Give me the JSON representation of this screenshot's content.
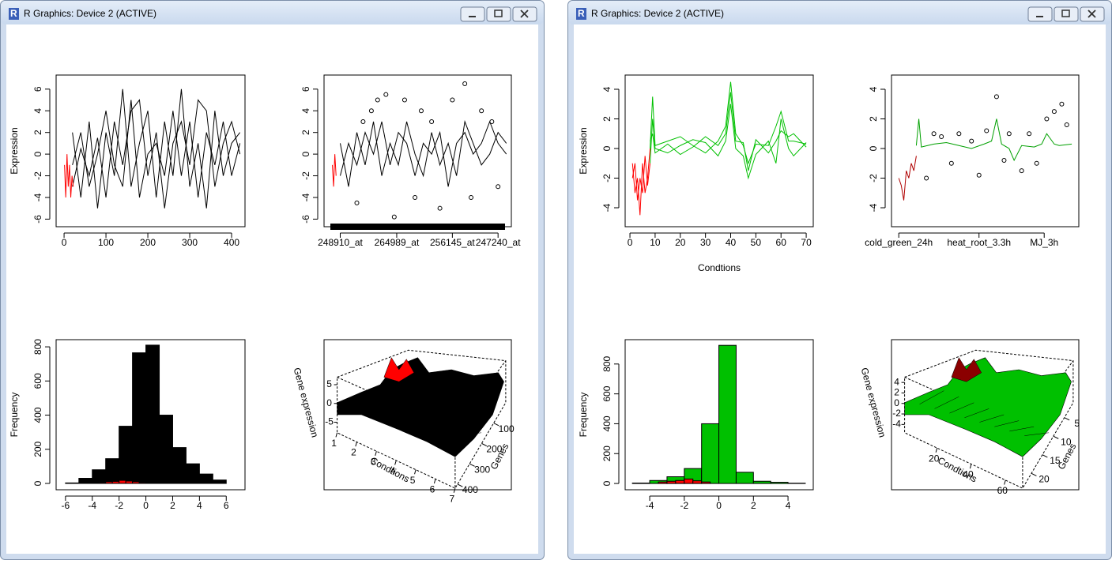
{
  "windows": [
    {
      "title": "R Graphics: Device 2 (ACTIVE)",
      "plots": [
        {
          "type": "line",
          "ylabel": "Expression",
          "xlim": [
            -19,
            432
          ],
          "ylim": [
            -6.7,
            7.3
          ],
          "xticks": [
            0,
            100,
            200,
            300,
            400
          ],
          "yticks": [
            -6,
            -4,
            -2,
            0,
            2,
            4,
            6
          ],
          "series": [
            {
              "color": "#000000",
              "x": [
                20,
                40,
                60,
                80,
                100,
                120,
                140,
                160,
                180,
                200,
                220,
                240,
                260,
                280,
                300,
                320,
                340,
                360,
                380,
                400,
                420
              ],
              "values": [
                -3,
                0.5,
                -2,
                1.5,
                -4,
                3,
                -1,
                4,
                5,
                -2,
                2,
                -5,
                1,
                3,
                -1,
                5,
                4,
                -3,
                1,
                3,
                0
              ]
            },
            {
              "color": "#000000",
              "x": [
                20,
                40,
                60,
                80,
                100,
                120,
                140,
                160,
                180,
                200,
                220,
                240,
                260,
                280,
                300,
                320,
                340,
                360,
                380,
                400,
                420
              ],
              "values": [
                2,
                -4,
                3,
                -5,
                2,
                -2,
                6,
                -3,
                1,
                4,
                -4,
                3,
                -2,
                6,
                -3,
                1,
                -5,
                4,
                -2,
                1,
                2
              ]
            },
            {
              "color": "#000000",
              "x": [
                20,
                40,
                60,
                80,
                100,
                120,
                140,
                160,
                180,
                200,
                220,
                240,
                260,
                280,
                300,
                320,
                340,
                360,
                380,
                400,
                420
              ],
              "values": [
                -1,
                2,
                -3,
                0,
                4,
                -1,
                -3,
                5,
                -4,
                0,
                1,
                -2,
                4,
                -2,
                3,
                -4,
                2,
                -1,
                3,
                -2,
                1
              ]
            },
            {
              "color": "#ff0000",
              "x": [
                1,
                4,
                7,
                10,
                13,
                16,
                19,
                22
              ],
              "values": [
                -1,
                -4,
                0,
                -3,
                -1,
                -4,
                -2,
                -3
              ]
            }
          ]
        },
        {
          "type": "line",
          "xlim": [
            -19,
            432
          ],
          "ylim": [
            -6.7,
            7.3
          ],
          "xticks": [
            {
              "value": 20,
              "label": "248910_at"
            },
            {
              "value": 156,
              "label": "264989_at"
            },
            {
              "value": 290,
              "label": "256145_at"
            },
            {
              "value": 400,
              "label": "247240_at"
            }
          ],
          "yticks": [
            -6,
            -4,
            -2,
            0,
            2,
            4,
            6
          ],
          "rug": true,
          "series": [
            {
              "color": "#000000",
              "x": [
                20,
                40,
                60,
                80,
                100,
                120,
                140,
                160,
                180,
                200,
                220,
                240,
                260,
                280,
                300,
                320,
                340,
                360,
                380,
                400,
                420
              ],
              "values": [
                -2,
                1,
                -1,
                2,
                0,
                3,
                -1,
                2,
                1,
                -2,
                1,
                0,
                2,
                -3,
                1,
                2,
                0,
                1,
                3,
                1,
                0
              ]
            },
            {
              "color": "#000000",
              "x": [
                20,
                40,
                60,
                80,
                100,
                120,
                140,
                160,
                180,
                200,
                220,
                240,
                260,
                280,
                300,
                320,
                340,
                360,
                380,
                400,
                420
              ],
              "values": [
                1,
                -3,
                2,
                -1,
                3,
                -2,
                1,
                -1,
                3,
                0,
                -2,
                2,
                -1,
                1,
                -2,
                3,
                1,
                -1,
                0,
                2,
                1
              ]
            },
            {
              "color": "#ff0000",
              "x": [
                1,
                4,
                7,
                10
              ],
              "values": [
                -1,
                -3,
                0,
                -2
              ]
            }
          ],
          "points": {
            "x": [
              60,
              75,
              95,
              110,
              130,
              150,
              175,
              200,
              215,
              240,
              260,
              290,
              320,
              335,
              360,
              385,
              400
            ],
            "y": [
              -4.5,
              3,
              4,
              5,
              5.5,
              -5.8,
              5,
              -4,
              4,
              3,
              -5,
              5,
              6.5,
              -4,
              4,
              3,
              -3
            ]
          }
        },
        {
          "type": "histogram",
          "ylabel": "Frequency",
          "xlim": [
            -6.7,
            7.4
          ],
          "ylim": [
            -37,
            842
          ],
          "xticks": [
            -6,
            -4,
            -2,
            0,
            2,
            4,
            6
          ],
          "yticks": [
            0,
            200,
            400,
            600,
            800
          ],
          "bins": [
            -6,
            -5,
            -4,
            -3,
            -2,
            -1,
            0,
            1,
            2,
            3,
            4,
            5,
            6
          ],
          "counts": [
            3,
            30,
            80,
            145,
            335,
            765,
            810,
            400,
            210,
            115,
            55,
            20
          ],
          "color": "#000000",
          "overlay": {
            "bins": [
              -3.5,
              -3,
              -2.5,
              -2,
              -1.5,
              -1,
              -0.5,
              0
            ],
            "counts": [
              5,
              10,
              12,
              18,
              14,
              10,
              5
            ],
            "color": "#ff0000"
          }
        },
        {
          "type": "surface",
          "zlabel": "Gene expression",
          "xlabel": "Condtions",
          "ylabel": "Genes",
          "xlim": [
            1,
            7
          ],
          "ylim": [
            0,
            420
          ],
          "zlim": [
            -7,
            7
          ],
          "xticks": [
            1,
            2,
            3,
            4,
            5,
            6,
            7
          ],
          "yticks": [
            100,
            200,
            300,
            400
          ],
          "zticks": [
            -5,
            0,
            5
          ],
          "color": "#000000",
          "accent": "#ff0000"
        }
      ]
    },
    {
      "title": "R Graphics: Device 2 (ACTIVE)",
      "plots": [
        {
          "type": "line",
          "ylabel": "Expression",
          "xlabel": "Condtions",
          "xlim": [
            -1.9,
            72.8
          ],
          "ylim": [
            -5.28,
            4.96
          ],
          "xticks": [
            0,
            10,
            20,
            30,
            40,
            50,
            60,
            70
          ],
          "yticks": [
            -4,
            -2,
            0,
            2,
            4
          ],
          "series": [
            {
              "color": "#00c000",
              "x": [
                8,
                9,
                10,
                15,
                20,
                25,
                30,
                35,
                38,
                40,
                42,
                45,
                47,
                50,
                55,
                58,
                60,
                63,
                65,
                70
              ],
              "values": [
                0,
                3.5,
                0.2,
                0.5,
                0.8,
                0.2,
                -0.3,
                0.5,
                1.5,
                4.5,
                1,
                0.2,
                -1,
                0.3,
                0.2,
                1.5,
                2.5,
                0.5,
                0.5,
                0.3
              ]
            },
            {
              "color": "#00c000",
              "x": [
                8,
                9,
                10,
                15,
                20,
                25,
                30,
                35,
                38,
                40,
                42,
                45,
                47,
                50,
                55,
                58,
                60,
                63,
                65,
                70
              ],
              "values": [
                -1,
                2,
                0,
                -0.3,
                0.2,
                0.6,
                0.4,
                -0.5,
                0.5,
                3,
                0,
                -0.5,
                -2,
                -0.4,
                0.5,
                -1,
                2,
                0,
                -0.5,
                0.4
              ]
            },
            {
              "color": "#00c000",
              "x": [
                8,
                9,
                10,
                15,
                20,
                25,
                30,
                35,
                38,
                40,
                42,
                45,
                47,
                50,
                55,
                58,
                60,
                63,
                65,
                70
              ],
              "values": [
                0.5,
                1,
                -0.3,
                0.3,
                -0.4,
                0.1,
                0.8,
                0.2,
                1,
                3.8,
                0.5,
                0.4,
                -1.5,
                0.6,
                -0.3,
                0.5,
                1.2,
                0.8,
                1,
                0.1
              ]
            },
            {
              "color": "#ff0000",
              "x": [
                1,
                2,
                3,
                4,
                5,
                6,
                7,
                8
              ],
              "values": [
                -1,
                -3,
                -2,
                -4.5,
                -1,
                -3,
                -2,
                0
              ]
            },
            {
              "color": "#ff0000",
              "x": [
                1,
                2,
                3,
                4,
                5,
                6,
                7,
                8
              ],
              "values": [
                -2,
                -1,
                -3.5,
                -2,
                -3,
                -0.5,
                -2.5,
                -1
              ]
            }
          ]
        },
        {
          "type": "line",
          "xlim": [
            -1.9,
            72.8
          ],
          "ylim": [
            -5.28,
            4.96
          ],
          "xticks": [
            {
              "value": 1,
              "label": "cold_green_24h"
            },
            {
              "value": 33,
              "label": "heat_root_3.3h"
            },
            {
              "value": 59,
              "label": "MJ_3h"
            }
          ],
          "yticks": [
            -4,
            -2,
            0,
            2,
            4
          ],
          "series": [
            {
              "color": "#00a000",
              "x": [
                8,
                9,
                10,
                15,
                20,
                25,
                30,
                35,
                38,
                40,
                42,
                45,
                47,
                50,
                55,
                58,
                60,
                63,
                65,
                70
              ],
              "values": [
                0.2,
                2,
                0.1,
                0.3,
                0.4,
                0.2,
                0,
                0.3,
                0.5,
                2,
                0.3,
                0,
                -0.8,
                0.2,
                0.1,
                0.3,
                1,
                0.3,
                0.2,
                0.3
              ]
            },
            {
              "color": "#b00000",
              "x": [
                1,
                2,
                3,
                4,
                5,
                6,
                7,
                8
              ],
              "values": [
                -2,
                -2.5,
                -3.5,
                -1.5,
                -2,
                -1,
                -1.5,
                -0.5
              ]
            }
          ],
          "points": {
            "x": [
              12,
              15,
              18,
              22,
              25,
              30,
              33,
              36,
              40,
              43,
              45,
              50,
              53,
              56,
              60,
              63,
              66,
              68
            ],
            "y": [
              -2,
              1,
              0.8,
              -1,
              1,
              0.5,
              -1.8,
              1.2,
              3.5,
              -0.8,
              1,
              -1.5,
              1,
              -1,
              2,
              2.5,
              3,
              1.6
            ]
          }
        },
        {
          "type": "histogram",
          "ylabel": "Frequency",
          "xlim": [
            -5.42,
            5.46
          ],
          "ylim": [
            -42,
            963
          ],
          "xticks": [
            -4,
            -2,
            0,
            2,
            4
          ],
          "yticks": [
            0,
            200,
            400,
            600,
            800
          ],
          "bins": [
            -5,
            -4,
            -3,
            -2,
            -1,
            0,
            1,
            2,
            3,
            4,
            5
          ],
          "counts": [
            3,
            20,
            45,
            100,
            400,
            925,
            75,
            15,
            8,
            2
          ],
          "color": "#00c000",
          "overlay": {
            "bins": [
              -3.5,
              -3,
              -2.5,
              -2,
              -1.5,
              -1,
              -0.5
            ],
            "counts": [
              10,
              15,
              20,
              30,
              18,
              10
            ],
            "color": "#ff0000"
          }
        },
        {
          "type": "surface",
          "zlabel": "Gene expression",
          "xlabel": "Condtions",
          "ylabel": "Genes",
          "xlim": [
            1,
            70
          ],
          "ylim": [
            1,
            24
          ],
          "zlim": [
            -5,
            5
          ],
          "xticks": [
            20,
            40,
            60
          ],
          "yticks": [
            5,
            10,
            15,
            20
          ],
          "zticks": [
            -4,
            -2,
            0,
            2,
            4
          ],
          "color": "#00c000",
          "accent": "#8b0000"
        }
      ]
    }
  ]
}
